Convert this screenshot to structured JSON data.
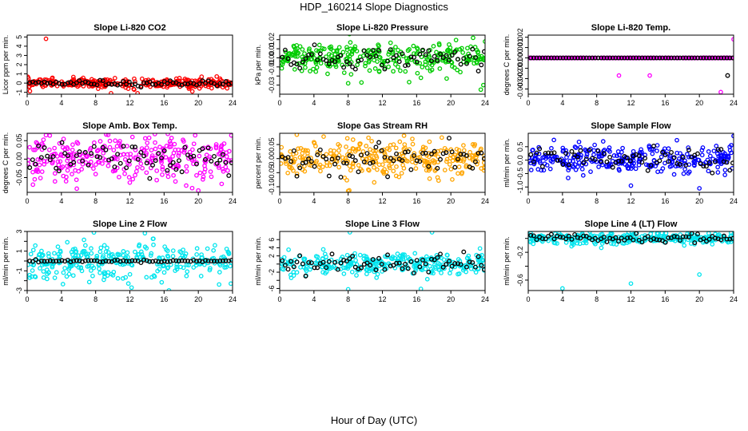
{
  "title": "HDP_160214  Slope Diagnostics",
  "x_label": "Hour of Day (UTC)",
  "chart_data": [
    {
      "type": "scatter",
      "title": "Slope Li-820 CO2",
      "ylabel": "Licor ppm per min.",
      "color": "#ff0000",
      "xlim": [
        0,
        24
      ],
      "xticks": [
        0,
        4,
        8,
        12,
        16,
        20,
        24
      ],
      "ylim": [
        -1.2,
        5.2
      ],
      "yticks": [
        -1,
        0,
        1,
        2,
        3,
        4,
        5
      ],
      "ytick_labels": [
        "-1",
        "0",
        "1",
        "2",
        "3",
        "4",
        "5"
      ],
      "center": 0.0,
      "spread": 0.25,
      "outliers": [
        [
          2.2,
          4.8
        ],
        [
          9.8,
          -1.1
        ],
        [
          12.5,
          -0.7
        ],
        [
          12.9,
          -1.1
        ],
        [
          19.3,
          -0.9
        ],
        [
          18.9,
          -0.6
        ]
      ],
      "black_spread": 0.15
    },
    {
      "type": "scatter",
      "title": "Slope Li-820 Pressure",
      "ylabel": "kPa per min.",
      "color": "#00cc00",
      "xlim": [
        0,
        24
      ],
      "xticks": [
        0,
        4,
        8,
        12,
        16,
        20,
        24
      ],
      "ylim": [
        -0.04,
        0.025
      ],
      "yticks": [
        -0.03,
        -0.02,
        -0.01,
        0.0,
        0.01,
        0.02
      ],
      "ytick_labels": [
        "-0.03",
        "-0.01",
        "0.00",
        "0.01",
        "0.02"
      ],
      "center": 0.0,
      "spread": 0.008,
      "outliers": [
        [
          8.0,
          -0.028
        ],
        [
          16.5,
          -0.022
        ],
        [
          23.5,
          -0.035
        ],
        [
          24,
          0.018
        ],
        [
          23.8,
          -0.03
        ],
        [
          22.6,
          0.022
        ]
      ],
      "black_spread": 0.006
    },
    {
      "type": "scatter",
      "title": "Slope Li-820 Temp.",
      "ylabel": "degrees C per min.",
      "color": "#ff00ff",
      "xlim": [
        0,
        24
      ],
      "xticks": [
        0,
        4,
        8,
        12,
        16,
        20,
        24
      ],
      "ylim": [
        -0.0035,
        0.0022
      ],
      "yticks": [
        -0.003,
        -0.002,
        -0.001,
        0.0,
        0.001,
        0.002
      ],
      "ytick_labels": [
        "-0.003",
        "-0.002",
        "-0.001",
        "0.000",
        "0.001",
        "0.002"
      ],
      "center": 0.0,
      "spread": 0.0,
      "outliers": [
        [
          10.6,
          -0.0017
        ],
        [
          14.2,
          -0.0017
        ],
        [
          22.5,
          -0.0033
        ],
        [
          24,
          0.0018
        ]
      ],
      "black_spread": 0.0,
      "black_outliers": [
        [
          23.3,
          -0.0017
        ]
      ]
    },
    {
      "type": "scatter",
      "title": "Slope Amb. Box Temp.",
      "ylabel": "degrees C per min.",
      "color": "#ff00ff",
      "xlim": [
        0,
        24
      ],
      "xticks": [
        0,
        4,
        8,
        12,
        16,
        20,
        24
      ],
      "ylim": [
        -0.09,
        0.07
      ],
      "yticks": [
        -0.05,
        0.0,
        0.05
      ],
      "ytick_labels": [
        "-0.05",
        "0.00",
        "0.05"
      ],
      "center": 0.0,
      "spread": 0.03,
      "outliers": [
        [
          2.2,
          0.065
        ],
        [
          12.3,
          0.06
        ],
        [
          20,
          -0.085
        ],
        [
          5.8,
          -0.08
        ]
      ],
      "black_spread": 0.02
    },
    {
      "type": "scatter",
      "title": "Slope Gas Stream RH",
      "ylabel": "percent per min.",
      "color": "#ffa500",
      "xlim": [
        0,
        24
      ],
      "xticks": [
        0,
        4,
        8,
        12,
        16,
        20,
        24
      ],
      "ylim": [
        -0.12,
        0.09
      ],
      "yticks": [
        -0.1,
        -0.05,
        0.0,
        0.05
      ],
      "ytick_labels": [
        "-0.10",
        "-0.05",
        "0.00",
        "0.05"
      ],
      "center": 0.0,
      "spread": 0.03,
      "outliers": [
        [
          8.0,
          -0.115
        ],
        [
          2.0,
          0.085
        ],
        [
          15.5,
          0.07
        ],
        [
          17.5,
          0.06
        ]
      ],
      "black_spread": 0.025
    },
    {
      "type": "scatter",
      "title": "Slope Sample Flow",
      "ylabel": "ml/min per min.",
      "color": "#0000ff",
      "xlim": [
        0,
        24
      ],
      "xticks": [
        0,
        4,
        8,
        12,
        16,
        20,
        24
      ],
      "ylim": [
        -1.2,
        1.0
      ],
      "yticks": [
        -1.0,
        -0.5,
        0.0,
        0.5
      ],
      "ytick_labels": [
        "-1.0",
        "-0.5",
        "0.0",
        "0.5"
      ],
      "center": 0.0,
      "spread": 0.25,
      "outliers": [
        [
          20,
          -1.05
        ],
        [
          24,
          0.9
        ],
        [
          3,
          0.75
        ],
        [
          12,
          -0.95
        ]
      ],
      "black_spread": 0.2
    },
    {
      "type": "scatter",
      "title": "Slope Line 2 Flow",
      "ylabel": "ml/min per min.",
      "color": "#00e5ee",
      "xlim": [
        0,
        24
      ],
      "xticks": [
        0,
        4,
        8,
        12,
        16,
        20,
        24
      ],
      "ylim": [
        -3,
        3
      ],
      "yticks": [
        -3,
        -2,
        -1,
        0,
        1,
        2,
        3
      ],
      "ytick_labels": [
        "-3",
        "-1",
        "1",
        "3"
      ],
      "center": 0.0,
      "spread": 0.9,
      "outliers": [
        [
          12.2,
          -2.7
        ],
        [
          23.8,
          -2.3
        ],
        [
          7.8,
          2.9
        ]
      ],
      "black_spread": 0.05
    },
    {
      "type": "scatter",
      "title": "Slope Line 3 Flow",
      "ylabel": "ml/min per min.",
      "color": "#00e5ee",
      "xlim": [
        0,
        24
      ],
      "xticks": [
        0,
        4,
        8,
        12,
        16,
        20,
        24
      ],
      "ylim": [
        -6.5,
        8
      ],
      "yticks": [
        -6,
        -4,
        -2,
        0,
        2,
        4,
        6
      ],
      "ytick_labels": [
        "-6",
        "-2",
        "2",
        "4",
        "6"
      ],
      "center": 0.0,
      "spread": 1.4,
      "outliers": [
        [
          8.2,
          7.8
        ],
        [
          17.8,
          7.8
        ],
        [
          16.5,
          -6.1
        ],
        [
          8.0,
          -6.2
        ]
      ],
      "black_spread": 1.2
    },
    {
      "type": "scatter",
      "title": "Slope Line 4 (LT) Flow",
      "ylabel": "ml/min per min.",
      "color": "#00e5ee",
      "xlim": [
        0,
        24
      ],
      "xticks": [
        0,
        4,
        8,
        12,
        16,
        20,
        24
      ],
      "ylim": [
        -0.75,
        0.1
      ],
      "yticks": [
        -0.6,
        -0.4,
        -0.2,
        0.0
      ],
      "ytick_labels": [
        "-0.6",
        "-0.2"
      ],
      "center": 0.0,
      "spread": 0.04,
      "outliers": [
        [
          4.0,
          -0.72
        ],
        [
          12.0,
          -0.65
        ],
        [
          20.0,
          -0.52
        ]
      ],
      "black_spread": 0.03
    }
  ]
}
